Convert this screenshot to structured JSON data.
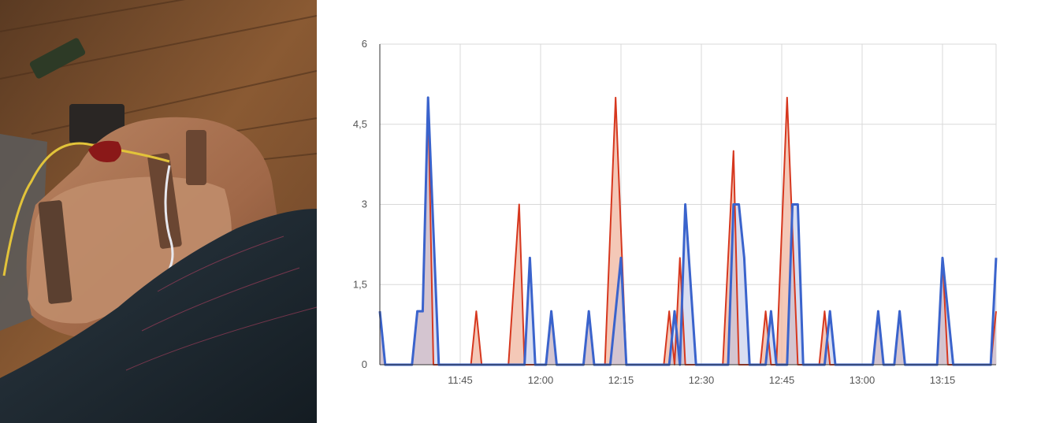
{
  "photo": {
    "colors": {
      "floor": "#8a5a33",
      "bag": "#a8704e",
      "knee": "#1e2a33",
      "wire": "#e2c33a"
    }
  },
  "chart_data": {
    "type": "area",
    "x_axis": {
      "min": 0,
      "max": 115,
      "tick_positions": [
        15,
        30,
        45,
        60,
        75,
        90,
        105
      ],
      "tick_labels": [
        "11:45",
        "12:00",
        "12:15",
        "12:30",
        "12:45",
        "13:00",
        "13:15"
      ]
    },
    "y_axis": {
      "min": 0,
      "max": 6,
      "tick_values": [
        0,
        1.5,
        3,
        4.5,
        6
      ],
      "tick_labels": [
        "0",
        "1,5",
        "3",
        "4,5",
        "6"
      ]
    },
    "grid": true,
    "legend": "none",
    "series": [
      {
        "color": "#d6371e",
        "fill": "#f0b59f",
        "points": [
          [
            0,
            1
          ],
          [
            1,
            0
          ],
          [
            6,
            0
          ],
          [
            7,
            1
          ],
          [
            8,
            1
          ],
          [
            9,
            5
          ],
          [
            10,
            0
          ],
          [
            17,
            0
          ],
          [
            18,
            1
          ],
          [
            19,
            0
          ],
          [
            24,
            0
          ],
          [
            26,
            3
          ],
          [
            27,
            0
          ],
          [
            31,
            0
          ],
          [
            32,
            1
          ],
          [
            33,
            0
          ],
          [
            38,
            0
          ],
          [
            39,
            1
          ],
          [
            40,
            0
          ],
          [
            42,
            0
          ],
          [
            44,
            5
          ],
          [
            46,
            0
          ],
          [
            53,
            0
          ],
          [
            54,
            1
          ],
          [
            55,
            0
          ],
          [
            56,
            2
          ],
          [
            57,
            0
          ],
          [
            64,
            0
          ],
          [
            66,
            4
          ],
          [
            67,
            0
          ],
          [
            71,
            0
          ],
          [
            72,
            1
          ],
          [
            73,
            0
          ],
          [
            74,
            0
          ],
          [
            76,
            5
          ],
          [
            78,
            0
          ],
          [
            82,
            0
          ],
          [
            83,
            1
          ],
          [
            84,
            0
          ],
          [
            92,
            0
          ],
          [
            93,
            1
          ],
          [
            94,
            0
          ],
          [
            96,
            0
          ],
          [
            97,
            1
          ],
          [
            98,
            0
          ],
          [
            104,
            0
          ],
          [
            105,
            2
          ],
          [
            106,
            0
          ],
          [
            114,
            0
          ],
          [
            115,
            1
          ]
        ]
      },
      {
        "color": "#3a63cc",
        "fill": "#b9c3e6",
        "points": [
          [
            0,
            1
          ],
          [
            1,
            0
          ],
          [
            6,
            0
          ],
          [
            7,
            1
          ],
          [
            8,
            1
          ],
          [
            9,
            5
          ],
          [
            11,
            0
          ],
          [
            27,
            0
          ],
          [
            28,
            2
          ],
          [
            29,
            0
          ],
          [
            31,
            0
          ],
          [
            32,
            1
          ],
          [
            33,
            0
          ],
          [
            38,
            0
          ],
          [
            39,
            1
          ],
          [
            40,
            0
          ],
          [
            43,
            0
          ],
          [
            45,
            2
          ],
          [
            46,
            0
          ],
          [
            54,
            0
          ],
          [
            55,
            1
          ],
          [
            56,
            0
          ],
          [
            57,
            3
          ],
          [
            59,
            0
          ],
          [
            65,
            0
          ],
          [
            66,
            3
          ],
          [
            67,
            3
          ],
          [
            68,
            2
          ],
          [
            69,
            0
          ],
          [
            72,
            0
          ],
          [
            73,
            1
          ],
          [
            74,
            0
          ],
          [
            76,
            0
          ],
          [
            77,
            3
          ],
          [
            78,
            3
          ],
          [
            79,
            0
          ],
          [
            83,
            0
          ],
          [
            84,
            1
          ],
          [
            85,
            0
          ],
          [
            92,
            0
          ],
          [
            93,
            1
          ],
          [
            94,
            0
          ],
          [
            96,
            0
          ],
          [
            97,
            1
          ],
          [
            98,
            0
          ],
          [
            104,
            0
          ],
          [
            105,
            2
          ],
          [
            107,
            0
          ],
          [
            114,
            0
          ],
          [
            115,
            2
          ]
        ]
      }
    ]
  }
}
